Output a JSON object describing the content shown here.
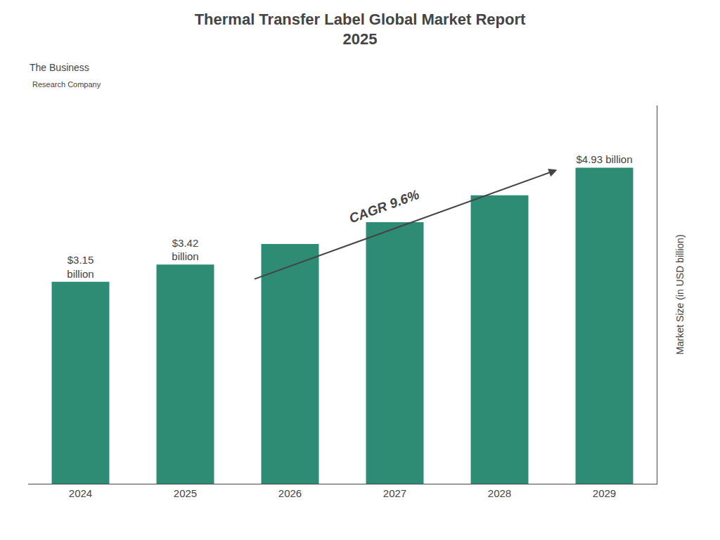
{
  "chart_data": {
    "type": "bar",
    "title": "Thermal Transfer Label Global Market Report\n2025",
    "categories": [
      "2024",
      "2025",
      "2026",
      "2027",
      "2028",
      "2029"
    ],
    "values": [
      3.15,
      3.42,
      3.74,
      4.08,
      4.5,
      4.93
    ],
    "color": "#2e8b74",
    "ylabel": "Market Size (in USD billion)",
    "ylim": [
      0,
      5.9
    ],
    "tick_labels": "x",
    "grid": false,
    "data_labels": true,
    "value_labels": [
      "$3.15\nbillion",
      "$3.42\nbillion",
      null,
      null,
      null,
      "$4.93 billion"
    ],
    "annotations": [
      "CAGR 9.6%",
      "The Business",
      "Research Company"
    ]
  }
}
